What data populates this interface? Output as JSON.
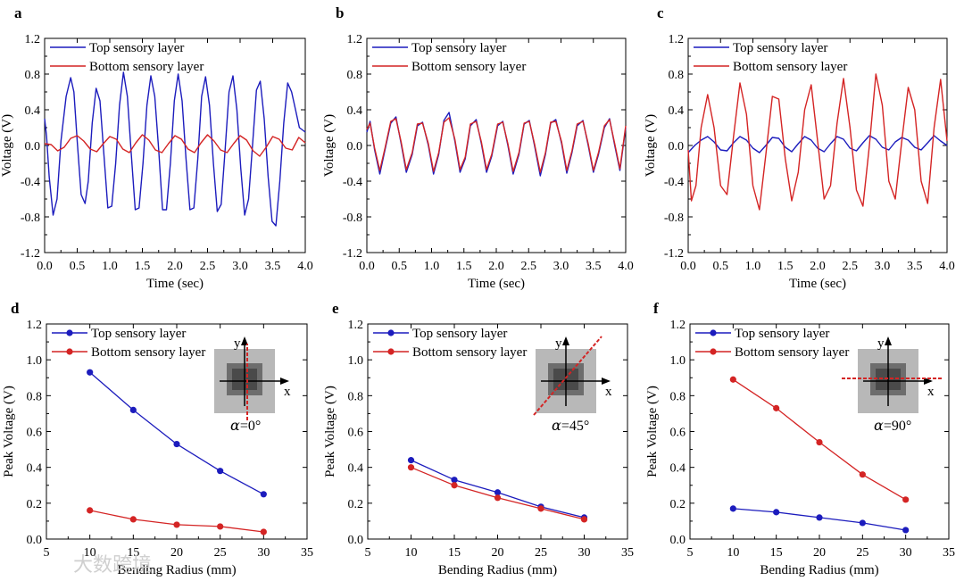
{
  "colors": {
    "top": "#1c1cbd",
    "bottom": "#d42424"
  },
  "watermark": "大数跨境",
  "chart_data": [
    {
      "id": "a",
      "type": "line",
      "panel_label": "a",
      "xlabel": "Time (sec)",
      "ylabel": "Voltage (V)",
      "xlim": [
        0,
        4
      ],
      "ylim": [
        -1.2,
        1.2
      ],
      "xticks": [
        "0.0",
        "0.5",
        "1.0",
        "1.5",
        "2.0",
        "2.5",
        "3.0",
        "3.5",
        "4.0"
      ],
      "yticks": [
        "-1.2",
        "-0.8",
        "-0.4",
        "0.0",
        "0.4",
        "0.8",
        "1.2"
      ],
      "legend": "top-left",
      "series": [
        {
          "name": "Top sensory layer",
          "color": "#1c1cbd",
          "x": [
            0,
            0.03,
            0.07,
            0.13,
            0.19,
            0.25,
            0.33,
            0.4,
            0.45,
            0.5,
            0.56,
            0.62,
            0.67,
            0.73,
            0.79,
            0.85,
            0.91,
            0.97,
            1.03,
            1.09,
            1.15,
            1.21,
            1.27,
            1.33,
            1.39,
            1.45,
            1.51,
            1.57,
            1.63,
            1.69,
            1.75,
            1.81,
            1.87,
            1.93,
            1.99,
            2.05,
            2.11,
            2.17,
            2.23,
            2.29,
            2.35,
            2.41,
            2.47,
            2.53,
            2.59,
            2.65,
            2.71,
            2.77,
            2.83,
            2.89,
            2.95,
            3.01,
            3.07,
            3.13,
            3.19,
            3.25,
            3.31,
            3.37,
            3.43,
            3.49,
            3.55,
            3.61,
            3.67,
            3.73,
            3.79,
            3.85,
            3.91,
            4.0
          ],
          "y": [
            0.3,
            0.1,
            -0.35,
            -0.78,
            -0.6,
            0.05,
            0.55,
            0.76,
            0.6,
            0.05,
            -0.55,
            -0.65,
            -0.4,
            0.25,
            0.64,
            0.5,
            -0.1,
            -0.7,
            -0.68,
            -0.2,
            0.45,
            0.82,
            0.55,
            -0.1,
            -0.72,
            -0.7,
            -0.2,
            0.45,
            0.78,
            0.55,
            -0.05,
            -0.72,
            -0.72,
            -0.2,
            0.5,
            0.8,
            0.5,
            -0.15,
            -0.72,
            -0.7,
            -0.15,
            0.55,
            0.77,
            0.45,
            -0.2,
            -0.74,
            -0.66,
            -0.05,
            0.6,
            0.78,
            0.4,
            -0.25,
            -0.78,
            -0.6,
            0.0,
            0.62,
            0.72,
            0.3,
            -0.35,
            -0.85,
            -0.9,
            -0.4,
            0.25,
            0.7,
            0.6,
            0.4,
            0.2,
            0.15
          ]
        },
        {
          "name": "Bottom sensory layer",
          "color": "#d42424",
          "x": [
            0,
            0.1,
            0.2,
            0.3,
            0.4,
            0.5,
            0.6,
            0.7,
            0.8,
            0.9,
            1.0,
            1.1,
            1.2,
            1.3,
            1.4,
            1.5,
            1.6,
            1.7,
            1.8,
            1.9,
            2.0,
            2.1,
            2.2,
            2.3,
            2.4,
            2.5,
            2.6,
            2.7,
            2.8,
            2.9,
            3.0,
            3.1,
            3.2,
            3.3,
            3.4,
            3.5,
            3.6,
            3.7,
            3.8,
            3.9,
            4.0
          ],
          "y": [
            0.02,
            0.01,
            -0.06,
            -0.02,
            0.08,
            0.11,
            0.05,
            -0.04,
            -0.07,
            0.02,
            0.1,
            0.07,
            -0.04,
            -0.08,
            0.03,
            0.12,
            0.06,
            -0.05,
            -0.08,
            0.02,
            0.11,
            0.07,
            -0.04,
            -0.08,
            0.03,
            0.12,
            0.05,
            -0.05,
            -0.08,
            0.02,
            0.11,
            0.06,
            -0.06,
            -0.12,
            -0.02,
            0.1,
            0.07,
            -0.03,
            -0.05,
            0.09,
            0.03
          ]
        }
      ]
    },
    {
      "id": "b",
      "type": "line",
      "panel_label": "b",
      "xlabel": "Time (sec)",
      "ylabel": "Voltage (V)",
      "xlim": [
        0,
        4
      ],
      "ylim": [
        -1.2,
        1.2
      ],
      "xticks": [
        "0.0",
        "0.5",
        "1.0",
        "1.5",
        "2.0",
        "2.5",
        "3.0",
        "3.5",
        "4.0"
      ],
      "yticks": [
        "-1.2",
        "-0.8",
        "-0.4",
        "0.0",
        "0.4",
        "0.8",
        "1.2"
      ],
      "legend": "top-left",
      "series": [
        {
          "name": "Top sensory layer",
          "color": "#1c1cbd",
          "x": [
            0,
            0.05,
            0.12,
            0.2,
            0.28,
            0.37,
            0.45,
            0.53,
            0.61,
            0.7,
            0.78,
            0.86,
            0.95,
            1.03,
            1.11,
            1.19,
            1.27,
            1.36,
            1.44,
            1.52,
            1.6,
            1.69,
            1.77,
            1.85,
            1.93,
            2.02,
            2.1,
            2.18,
            2.26,
            2.35,
            2.43,
            2.51,
            2.59,
            2.68,
            2.76,
            2.84,
            2.92,
            3.01,
            3.09,
            3.17,
            3.25,
            3.34,
            3.42,
            3.5,
            3.58,
            3.67,
            3.75,
            3.83,
            3.91,
            4.0
          ],
          "y": [
            0.15,
            0.27,
            -0.05,
            -0.32,
            -0.05,
            0.25,
            0.32,
            0.02,
            -0.3,
            -0.1,
            0.22,
            0.26,
            0.0,
            -0.32,
            -0.1,
            0.28,
            0.37,
            0.05,
            -0.3,
            -0.15,
            0.22,
            0.29,
            0.02,
            -0.3,
            -0.12,
            0.22,
            0.27,
            0.0,
            -0.32,
            -0.1,
            0.24,
            0.28,
            0.0,
            -0.34,
            -0.1,
            0.25,
            0.29,
            0.02,
            -0.31,
            -0.08,
            0.22,
            0.28,
            0.0,
            -0.3,
            -0.1,
            0.2,
            0.3,
            0.0,
            -0.28,
            0.2
          ]
        },
        {
          "name": "Bottom sensory layer",
          "color": "#d42424",
          "x": [
            0,
            0.05,
            0.12,
            0.2,
            0.28,
            0.37,
            0.45,
            0.53,
            0.61,
            0.7,
            0.78,
            0.86,
            0.95,
            1.03,
            1.11,
            1.19,
            1.27,
            1.36,
            1.44,
            1.52,
            1.6,
            1.69,
            1.77,
            1.85,
            1.93,
            2.02,
            2.1,
            2.18,
            2.26,
            2.35,
            2.43,
            2.51,
            2.59,
            2.68,
            2.76,
            2.84,
            2.92,
            3.01,
            3.09,
            3.17,
            3.25,
            3.34,
            3.42,
            3.5,
            3.58,
            3.67,
            3.75,
            3.83,
            3.91,
            4.0
          ],
          "y": [
            0.18,
            0.25,
            -0.03,
            -0.28,
            -0.03,
            0.27,
            0.3,
            0.04,
            -0.27,
            -0.08,
            0.24,
            0.25,
            0.02,
            -0.29,
            -0.08,
            0.26,
            0.31,
            0.07,
            -0.27,
            -0.13,
            0.24,
            0.27,
            0.04,
            -0.27,
            -0.1,
            0.24,
            0.26,
            0.02,
            -0.29,
            -0.08,
            0.25,
            0.27,
            0.02,
            -0.3,
            -0.08,
            0.26,
            0.27,
            0.04,
            -0.28,
            -0.06,
            0.24,
            0.27,
            0.02,
            -0.28,
            -0.08,
            0.22,
            0.29,
            0.02,
            -0.26,
            0.22
          ]
        }
      ]
    },
    {
      "id": "c",
      "type": "line",
      "panel_label": "c",
      "xlabel": "Time (sec)",
      "ylabel": "Voltage (V)",
      "xlim": [
        0,
        4
      ],
      "ylim": [
        -1.2,
        1.2
      ],
      "xticks": [
        "0.0",
        "0.5",
        "1.0",
        "1.5",
        "2.0",
        "2.5",
        "3.0",
        "3.5",
        "4.0"
      ],
      "yticks": [
        "-1.2",
        "-0.8",
        "-0.4",
        "0.0",
        "0.4",
        "0.8",
        "1.2"
      ],
      "legend": "top-left",
      "series": [
        {
          "name": "Top sensory layer",
          "color": "#1c1cbd",
          "x": [
            0,
            0.1,
            0.2,
            0.3,
            0.4,
            0.5,
            0.6,
            0.7,
            0.8,
            0.9,
            1.0,
            1.1,
            1.2,
            1.3,
            1.4,
            1.5,
            1.6,
            1.7,
            1.8,
            1.9,
            2.0,
            2.1,
            2.2,
            2.3,
            2.4,
            2.5,
            2.6,
            2.7,
            2.8,
            2.9,
            3.0,
            3.1,
            3.2,
            3.3,
            3.4,
            3.5,
            3.6,
            3.7,
            3.8,
            3.9,
            4.0
          ],
          "y": [
            -0.08,
            0.0,
            0.06,
            0.1,
            0.04,
            -0.05,
            -0.06,
            0.03,
            0.1,
            0.06,
            -0.03,
            -0.08,
            0.0,
            0.09,
            0.08,
            -0.02,
            -0.07,
            0.02,
            0.1,
            0.06,
            -0.03,
            -0.07,
            0.02,
            0.1,
            0.07,
            -0.03,
            -0.06,
            0.03,
            0.11,
            0.07,
            -0.02,
            -0.05,
            0.04,
            0.09,
            0.06,
            -0.02,
            -0.05,
            0.03,
            0.11,
            0.05,
            0.0
          ]
        },
        {
          "name": "Bottom sensory layer",
          "color": "#d42424",
          "x": [
            0,
            0.05,
            0.12,
            0.2,
            0.3,
            0.4,
            0.5,
            0.6,
            0.7,
            0.8,
            0.9,
            1.0,
            1.1,
            1.2,
            1.3,
            1.4,
            1.5,
            1.6,
            1.7,
            1.8,
            1.9,
            2.0,
            2.1,
            2.2,
            2.3,
            2.4,
            2.5,
            2.6,
            2.7,
            2.8,
            2.9,
            3.0,
            3.1,
            3.2,
            3.3,
            3.4,
            3.5,
            3.6,
            3.7,
            3.8,
            3.9,
            4.0
          ],
          "y": [
            -0.05,
            -0.62,
            -0.45,
            0.2,
            0.57,
            0.2,
            -0.45,
            -0.55,
            0.1,
            0.7,
            0.35,
            -0.45,
            -0.72,
            -0.1,
            0.55,
            0.52,
            -0.15,
            -0.62,
            -0.3,
            0.4,
            0.68,
            0.05,
            -0.6,
            -0.45,
            0.25,
            0.75,
            0.2,
            -0.5,
            -0.68,
            0.0,
            0.8,
            0.45,
            -0.4,
            -0.6,
            0.05,
            0.65,
            0.4,
            -0.4,
            -0.65,
            0.2,
            0.74,
            0.05
          ]
        }
      ]
    },
    {
      "id": "d",
      "type": "line",
      "panel_label": "d",
      "xlabel": "Bending Radius (mm)",
      "ylabel": "Peak Voltage (V)",
      "xlim": [
        5,
        35
      ],
      "ylim": [
        0,
        1.2
      ],
      "xticks": [
        "5",
        "10",
        "15",
        "20",
        "25",
        "30",
        "35"
      ],
      "yticks": [
        "0.0",
        "0.2",
        "0.4",
        "0.6",
        "0.8",
        "1.0",
        "1.2"
      ],
      "legend": "top-left",
      "inset": {
        "label": "=0°",
        "alpha": "α",
        "axis_y": "y",
        "axis_x": "x",
        "cut": "vertical"
      },
      "series": [
        {
          "name": "Top sensory layer",
          "color": "#1c1cbd",
          "x": [
            10,
            15,
            20,
            25,
            30
          ],
          "y": [
            0.93,
            0.72,
            0.53,
            0.38,
            0.25
          ]
        },
        {
          "name": "Bottom sensory layer",
          "color": "#d42424",
          "x": [
            10,
            15,
            20,
            25,
            30
          ],
          "y": [
            0.16,
            0.11,
            0.08,
            0.07,
            0.04
          ]
        }
      ]
    },
    {
      "id": "e",
      "type": "line",
      "panel_label": "e",
      "xlabel": "Bending Radius (mm)",
      "ylabel": "Peak Voltage (V)",
      "xlim": [
        5,
        35
      ],
      "ylim": [
        0,
        1.2
      ],
      "xticks": [
        "5",
        "10",
        "15",
        "20",
        "25",
        "30",
        "35"
      ],
      "yticks": [
        "0.0",
        "0.2",
        "0.4",
        "0.6",
        "0.8",
        "1.0",
        "1.2"
      ],
      "legend": "top-left",
      "inset": {
        "label": "=45°",
        "alpha": "α",
        "axis_y": "y",
        "axis_x": "x",
        "cut": "diagonal"
      },
      "series": [
        {
          "name": "Top sensory layer",
          "color": "#1c1cbd",
          "x": [
            10,
            15,
            20,
            25,
            30
          ],
          "y": [
            0.44,
            0.33,
            0.26,
            0.18,
            0.12
          ]
        },
        {
          "name": "Bottom sensory layer",
          "color": "#d42424",
          "x": [
            10,
            15,
            20,
            25,
            30
          ],
          "y": [
            0.4,
            0.3,
            0.23,
            0.17,
            0.11
          ]
        }
      ]
    },
    {
      "id": "f",
      "type": "line",
      "panel_label": "f",
      "xlabel": "Bending Radius (mm)",
      "ylabel": "Peak Voltage (V)",
      "xlim": [
        5,
        35
      ],
      "ylim": [
        0,
        1.2
      ],
      "xticks": [
        "5",
        "10",
        "15",
        "20",
        "25",
        "30",
        "35"
      ],
      "yticks": [
        "0.0",
        "0.2",
        "0.4",
        "0.6",
        "0.8",
        "1.0",
        "1.2"
      ],
      "legend": "top-left",
      "inset": {
        "label": "=90°",
        "alpha": "α",
        "axis_y": "y",
        "axis_x": "x",
        "cut": "horizontal"
      },
      "series": [
        {
          "name": "Top sensory layer",
          "color": "#1c1cbd",
          "x": [
            10,
            15,
            20,
            25,
            30
          ],
          "y": [
            0.17,
            0.15,
            0.12,
            0.09,
            0.05
          ]
        },
        {
          "name": "Bottom sensory layer",
          "color": "#d42424",
          "x": [
            10,
            15,
            20,
            25,
            30
          ],
          "y": [
            0.89,
            0.73,
            0.54,
            0.36,
            0.22
          ]
        }
      ]
    }
  ]
}
